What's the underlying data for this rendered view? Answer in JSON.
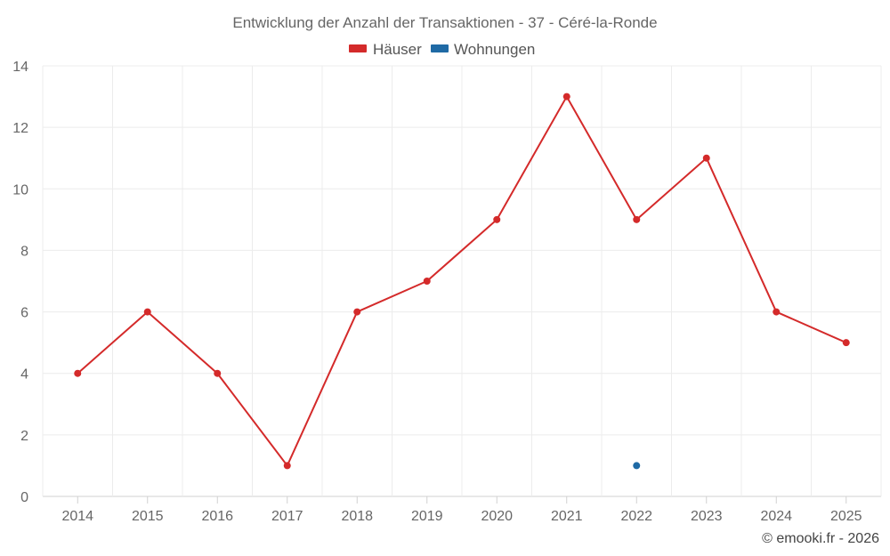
{
  "chart_data": {
    "type": "line",
    "title": "Entwicklung der Anzahl der Transaktionen - 37 - Céré-la-Ronde",
    "categories": [
      "2014",
      "2015",
      "2016",
      "2017",
      "2018",
      "2019",
      "2020",
      "2021",
      "2022",
      "2023",
      "2024",
      "2025"
    ],
    "ylim": [
      0,
      14
    ],
    "yticks": [
      0,
      2,
      4,
      6,
      8,
      10,
      12,
      14
    ],
    "grid": true,
    "legend_position": "top-center",
    "series": [
      {
        "name": "Häuser",
        "color": "#d42a2a",
        "values": [
          4,
          6,
          4,
          1,
          6,
          7,
          9,
          13,
          9,
          11,
          6,
          5
        ]
      },
      {
        "name": "Wohnungen",
        "color": "#1f6aa5",
        "values": [
          null,
          null,
          null,
          null,
          null,
          null,
          null,
          null,
          1,
          null,
          null,
          null
        ]
      }
    ],
    "credit": "© emooki.fr - 2026"
  }
}
